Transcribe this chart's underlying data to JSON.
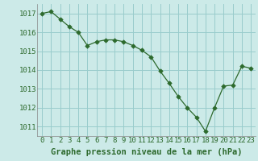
{
  "x": [
    0,
    1,
    2,
    3,
    4,
    5,
    6,
    7,
    8,
    9,
    10,
    11,
    12,
    13,
    14,
    15,
    16,
    17,
    18,
    19,
    20,
    21,
    22,
    23
  ],
  "y": [
    1017.0,
    1017.1,
    1016.7,
    1016.3,
    1016.0,
    1015.3,
    1015.5,
    1015.6,
    1015.6,
    1015.5,
    1015.3,
    1015.05,
    1014.7,
    1013.95,
    1013.3,
    1012.6,
    1012.0,
    1011.5,
    1010.75,
    1012.0,
    1013.15,
    1013.2,
    1014.2,
    1014.1
  ],
  "line_color": "#2d6a2d",
  "marker_color": "#2d6a2d",
  "bg_color": "#cceae8",
  "grid_color": "#99cccc",
  "xlabel": "Graphe pression niveau de la mer (hPa)",
  "xlabel_color": "#2d6a2d",
  "xlabel_fontsize": 7.5,
  "tick_label_color": "#2d6a2d",
  "tick_label_fontsize": 6.5,
  "ylim": [
    1010.5,
    1017.5
  ],
  "yticks": [
    1011,
    1012,
    1013,
    1014,
    1015,
    1016,
    1017
  ],
  "xlim": [
    -0.5,
    23.5
  ],
  "xticks": [
    0,
    1,
    2,
    3,
    4,
    5,
    6,
    7,
    8,
    9,
    10,
    11,
    12,
    13,
    14,
    15,
    16,
    17,
    18,
    19,
    20,
    21,
    22,
    23
  ]
}
